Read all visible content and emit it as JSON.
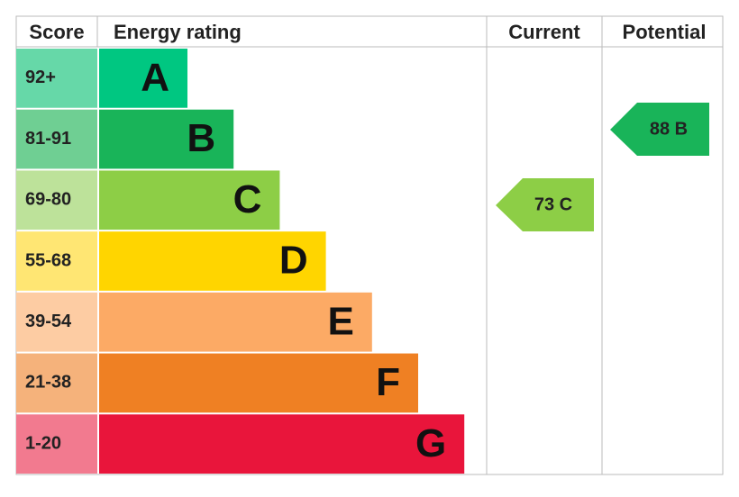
{
  "header": {
    "score": "Score",
    "rating": "Energy rating",
    "current": "Current",
    "potential": "Potential"
  },
  "bands": [
    {
      "score": "92+",
      "letter": "A",
      "color": "#00c781",
      "light": "#66d8a8"
    },
    {
      "score": "81-91",
      "letter": "B",
      "color": "#19b459",
      "light": "#6fcf93"
    },
    {
      "score": "69-80",
      "letter": "C",
      "color": "#8dce46",
      "light": "#bde29a"
    },
    {
      "score": "55-68",
      "letter": "D",
      "color": "#ffd500",
      "light": "#ffe673"
    },
    {
      "score": "39-54",
      "letter": "E",
      "color": "#fcaa65",
      "light": "#fdcca3"
    },
    {
      "score": "21-38",
      "letter": "F",
      "color": "#ef8023",
      "light": "#f5b27b"
    },
    {
      "score": "1-20",
      "letter": "G",
      "color": "#e9153b",
      "light": "#f27a8f"
    }
  ],
  "current": {
    "label": "73 C",
    "color": "#8dce46"
  },
  "potential": {
    "label": "88 B",
    "color": "#19b459"
  }
}
